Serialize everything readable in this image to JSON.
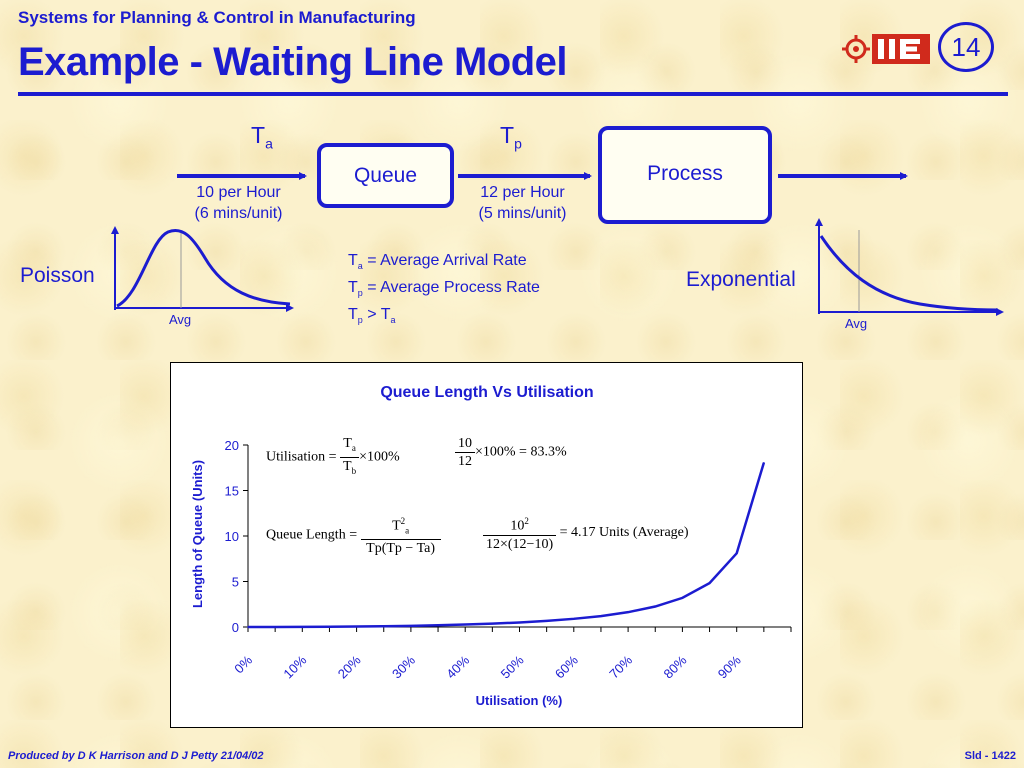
{
  "header": {
    "supertitle": "Systems for Planning & Control in Manufacturing",
    "title": "Example - Waiting Line Model",
    "page_number": "14",
    "logo_text": "IIE"
  },
  "flow": {
    "ta_symbol": "T",
    "ta_sub": "a",
    "tp_symbol": "T",
    "tp_sub": "p",
    "queue_label": "Queue",
    "process_label": "Process",
    "arrival_rate_line1": "10 per Hour",
    "arrival_rate_line2": "(6 mins/unit)",
    "process_rate_line1": "12 per Hour",
    "process_rate_line2": "(5 mins/unit)"
  },
  "definitions": {
    "line1_rest": " = Average Arrival Rate",
    "line2_rest": " = Average Process Rate",
    "line3_op": " > T"
  },
  "distributions": {
    "left_label": "Poisson",
    "left_avg": "Avg",
    "right_label": "Exponential",
    "right_avg": "Avg"
  },
  "formulas": {
    "utilisation_lhs": "Utilisation =",
    "util_num_sym": "T",
    "util_num_sub": "a",
    "util_den_sym": "T",
    "util_den_sub": "b",
    "util_times": "×100%",
    "util_num_val": "10",
    "util_den_val": "12",
    "util_result": "×100% = 83.3%",
    "queue_lhs": "Queue Length =",
    "ql_num_sym": "T",
    "ql_num_sub": "a",
    "ql_num_sup": "2",
    "ql_den": "Tp(Tp − Ta)",
    "ql_num_val": "10",
    "ql_num_val_sup": "2",
    "ql_den_val": "12×(12−10)",
    "ql_result": "= 4.17 Units (Average)"
  },
  "chart_data": {
    "type": "line",
    "title": "Queue Length Vs Utilisation",
    "xlabel": "Utilisation (%)",
    "ylabel": "Length of Queue (Units)",
    "x": [
      0,
      5,
      10,
      15,
      20,
      25,
      30,
      35,
      40,
      45,
      50,
      55,
      60,
      65,
      70,
      75,
      80,
      85,
      90,
      95
    ],
    "x_ticks": [
      "0%",
      "10%",
      "20%",
      "30%",
      "40%",
      "50%",
      "60%",
      "70%",
      "80%",
      "90%"
    ],
    "ylim": [
      0,
      20
    ],
    "y_ticks": [
      0,
      5,
      10,
      15,
      20
    ],
    "series": [
      {
        "values": [
          0,
          0,
          0.01,
          0.03,
          0.05,
          0.08,
          0.13,
          0.19,
          0.27,
          0.37,
          0.5,
          0.67,
          0.9,
          1.2,
          1.63,
          2.25,
          3.2,
          4.82,
          8.1,
          18.05
        ],
        "color": "#1c1cd0"
      }
    ],
    "grid": false
  },
  "footer": {
    "left": "Produced by D K Harrison and D J Petty 21/04/02",
    "right": "Sld - 1422"
  },
  "colors": {
    "primary": "#1c1cd0",
    "logo_red": "#d02a1c",
    "background": "#fbf1cc"
  }
}
